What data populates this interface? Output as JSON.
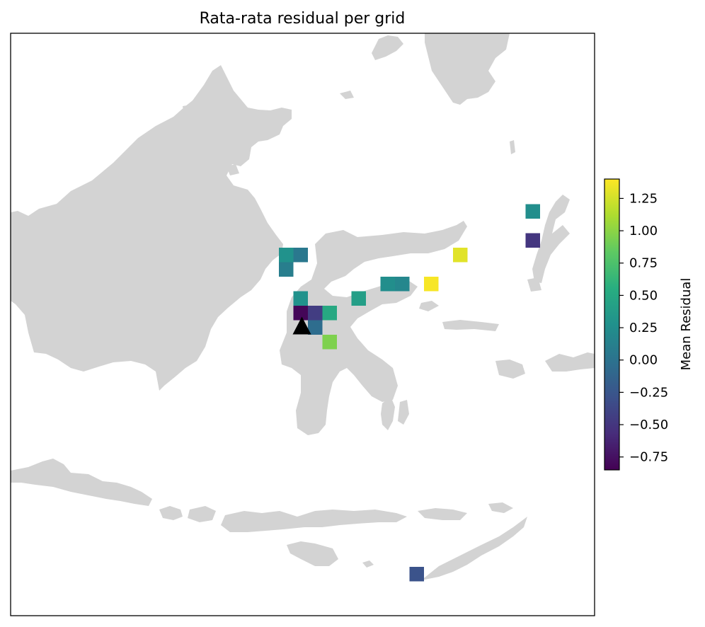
{
  "title": "Rata-rata residual per grid",
  "colorbar": {
    "label": "Mean Residual",
    "min": -0.85,
    "max": 1.4,
    "ticks": [
      {
        "value": 1.25,
        "label": "1.25"
      },
      {
        "value": 1.0,
        "label": "1.00"
      },
      {
        "value": 0.75,
        "label": "0.75"
      },
      {
        "value": 0.5,
        "label": "0.50"
      },
      {
        "value": 0.25,
        "label": "0.25"
      },
      {
        "value": 0.0,
        "label": "0.00"
      },
      {
        "value": -0.25,
        "label": "−0.25"
      },
      {
        "value": -0.5,
        "label": "−0.50"
      },
      {
        "value": -0.75,
        "label": "−0.75"
      }
    ],
    "colormap": "viridis"
  },
  "colors": {
    "land": "#d3d3d3",
    "ocean": "#ffffff",
    "station_marker": "#000000"
  },
  "chart_data": {
    "type": "heatmap",
    "description_units": "grid cells (column, row) with mean residual values",
    "cells": [
      {
        "col": 0,
        "row": 0,
        "value": 0.28
      },
      {
        "col": 1,
        "row": 0,
        "value": 0.05
      },
      {
        "col": 0,
        "row": 1,
        "value": 0.1
      },
      {
        "col": 1,
        "row": 3,
        "value": 0.28
      },
      {
        "col": 1,
        "row": 4,
        "value": -0.82
      },
      {
        "col": 2,
        "row": 4,
        "value": -0.45
      },
      {
        "col": 3,
        "row": 4,
        "value": 0.5
      },
      {
        "col": 2,
        "row": 5,
        "value": -0.05
      },
      {
        "col": 3,
        "row": 6,
        "value": 0.95
      },
      {
        "col": 5,
        "row": 3,
        "value": 0.4
      },
      {
        "col": 7,
        "row": 2,
        "value": 0.25
      },
      {
        "col": 8,
        "row": 2,
        "value": 0.18
      },
      {
        "col": 10,
        "row": 2,
        "value": 1.38
      },
      {
        "col": 12,
        "row": 0,
        "value": 1.3
      },
      {
        "col": 17,
        "row": -3,
        "value": 0.25
      },
      {
        "col": 17,
        "row": -1,
        "value": -0.5
      },
      {
        "col": 9,
        "row": 22,
        "value": -0.28
      }
    ],
    "station_marker": {
      "shape": "triangle",
      "col": 1,
      "row": 5
    }
  }
}
